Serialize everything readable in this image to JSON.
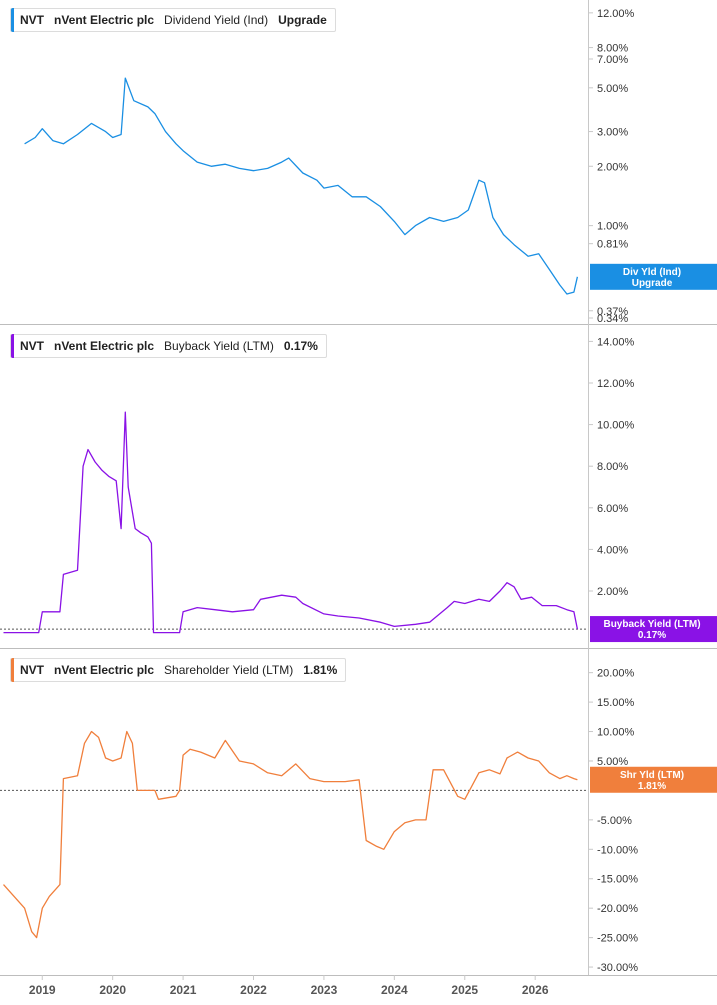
{
  "colors": {
    "dividend": "#1a8fe3",
    "buyback": "#8a12e6",
    "shareholder": "#f07f3c",
    "grid": "#e6e6e6",
    "axis": "#c8c8c8"
  },
  "chart_data": [
    {
      "type": "line",
      "ticker": "NVT",
      "company": "nVent Electric plc",
      "metric": "Dividend Yield (Ind)",
      "value_label": "Upgrade",
      "tag_lines": [
        "Div Yld (Ind)",
        "Upgrade"
      ],
      "yscale": "log",
      "ylim": [
        0.34,
        13
      ],
      "yticks": [
        "12.00%",
        "8.00%",
        "7.00%",
        "5.00%",
        "3.00%",
        "2.00%",
        "1.00%",
        "0.81%",
        "0.37%",
        "0.34%"
      ],
      "yticks_values": [
        12,
        8,
        7,
        5,
        3,
        2,
        1,
        0.81,
        0.37,
        0.34
      ],
      "reference_line": null,
      "x": [
        2018.75,
        2018.9,
        2019.0,
        2019.15,
        2019.3,
        2019.5,
        2019.7,
        2019.9,
        2020.0,
        2020.12,
        2020.18,
        2020.3,
        2020.5,
        2020.6,
        2020.75,
        2020.9,
        2021.0,
        2021.2,
        2021.4,
        2021.6,
        2021.8,
        2022.0,
        2022.2,
        2022.4,
        2022.5,
        2022.7,
        2022.9,
        2023.0,
        2023.2,
        2023.4,
        2023.6,
        2023.8,
        2024.0,
        2024.15,
        2024.3,
        2024.5,
        2024.7,
        2024.9,
        2025.05,
        2025.2,
        2025.28,
        2025.4,
        2025.55,
        2025.7,
        2025.9,
        2026.05,
        2026.2,
        2026.35,
        2026.45,
        2026.55,
        2026.6
      ],
      "y": [
        2.6,
        2.8,
        3.1,
        2.7,
        2.6,
        2.9,
        3.3,
        3.0,
        2.8,
        2.9,
        5.6,
        4.3,
        4.0,
        3.7,
        3.0,
        2.6,
        2.4,
        2.1,
        2.0,
        2.05,
        1.95,
        1.9,
        1.95,
        2.1,
        2.2,
        1.85,
        1.7,
        1.55,
        1.6,
        1.4,
        1.4,
        1.25,
        1.05,
        0.9,
        1.0,
        1.1,
        1.05,
        1.1,
        1.2,
        1.7,
        1.65,
        1.1,
        0.9,
        0.8,
        0.7,
        0.72,
        0.6,
        0.5,
        0.45,
        0.46,
        0.55
      ]
    },
    {
      "type": "line",
      "ticker": "NVT",
      "company": "nVent Electric plc",
      "metric": "Buyback Yield (LTM)",
      "value_label": "0.17%",
      "tag_lines": [
        "Buyback Yield (LTM)",
        "0.17%"
      ],
      "yscale": "linear",
      "ylim": [
        -0.5,
        14.5
      ],
      "yticks": [
        "14.00%",
        "12.00%",
        "10.00%",
        "8.00%",
        "6.00%",
        "4.00%",
        "2.00%"
      ],
      "yticks_values": [
        14,
        12,
        10,
        8,
        6,
        4,
        2
      ],
      "reference_line": 0.17,
      "x": [
        2018.45,
        2018.7,
        2018.8,
        2018.95,
        2019.0,
        2019.25,
        2019.3,
        2019.5,
        2019.58,
        2019.65,
        2019.75,
        2019.85,
        2019.95,
        2020.05,
        2020.12,
        2020.18,
        2020.22,
        2020.28,
        2020.32,
        2020.4,
        2020.5,
        2020.55,
        2020.58,
        2020.7,
        2020.85,
        2020.95,
        2021.0,
        2021.2,
        2021.45,
        2021.7,
        2022.0,
        2022.1,
        2022.4,
        2022.6,
        2022.7,
        2023.0,
        2023.2,
        2023.5,
        2023.8,
        2024.0,
        2024.3,
        2024.5,
        2024.75,
        2024.85,
        2025.0,
        2025.2,
        2025.35,
        2025.5,
        2025.6,
        2025.7,
        2025.8,
        2025.95,
        2026.1,
        2026.3,
        2026.45,
        2026.55,
        2026.6
      ],
      "y": [
        0.0,
        0.0,
        0.0,
        0.0,
        1.0,
        1.0,
        2.8,
        3.0,
        8.0,
        8.8,
        8.2,
        7.8,
        7.5,
        7.3,
        5.0,
        10.6,
        7.0,
        5.8,
        5.0,
        4.8,
        4.6,
        4.3,
        0.0,
        0.0,
        0.0,
        0.0,
        1.0,
        1.2,
        1.1,
        1.0,
        1.1,
        1.6,
        1.8,
        1.7,
        1.4,
        0.9,
        0.8,
        0.7,
        0.5,
        0.3,
        0.4,
        0.5,
        1.2,
        1.5,
        1.4,
        1.6,
        1.5,
        2.0,
        2.4,
        2.2,
        1.6,
        1.7,
        1.3,
        1.3,
        1.1,
        1.0,
        0.17
      ]
    },
    {
      "type": "line",
      "ticker": "NVT",
      "company": "nVent Electric plc",
      "metric": "Shareholder Yield (LTM)",
      "value_label": "1.81%",
      "tag_lines": [
        "Shr Yld (LTM)",
        "1.81%"
      ],
      "yscale": "linear",
      "ylim": [
        -30.5,
        23
      ],
      "yticks": [
        "20.00%",
        "15.00%",
        "10.00%",
        "5.00%",
        "-5.00%",
        "-10.00%",
        "-15.00%",
        "-20.00%",
        "-25.00%",
        "-30.00%"
      ],
      "yticks_values": [
        20,
        15,
        10,
        5,
        -5,
        -10,
        -15,
        -20,
        -25,
        -30
      ],
      "reference_line": 0,
      "x": [
        2018.45,
        2018.6,
        2018.75,
        2018.85,
        2018.92,
        2019.0,
        2019.1,
        2019.25,
        2019.3,
        2019.5,
        2019.6,
        2019.7,
        2019.8,
        2019.9,
        2020.0,
        2020.12,
        2020.2,
        2020.28,
        2020.35,
        2020.6,
        2020.65,
        2020.9,
        2020.95,
        2021.0,
        2021.1,
        2021.25,
        2021.45,
        2021.6,
        2021.8,
        2022.0,
        2022.2,
        2022.4,
        2022.6,
        2022.8,
        2023.0,
        2023.3,
        2023.5,
        2023.6,
        2023.75,
        2023.85,
        2024.0,
        2024.15,
        2024.3,
        2024.45,
        2024.55,
        2024.7,
        2024.9,
        2025.0,
        2025.2,
        2025.35,
        2025.5,
        2025.6,
        2025.75,
        2025.9,
        2026.05,
        2026.2,
        2026.35,
        2026.45,
        2026.55,
        2026.6
      ],
      "y": [
        -16.0,
        -18.0,
        -20.0,
        -24.0,
        -25.0,
        -20.0,
        -18.0,
        -16.0,
        2.0,
        2.5,
        8.0,
        10.0,
        9.0,
        5.5,
        5.0,
        5.5,
        10.0,
        8.0,
        0.0,
        0.0,
        -1.5,
        -1.0,
        0.0,
        6.0,
        7.0,
        6.5,
        5.5,
        8.5,
        5.0,
        4.5,
        3.0,
        2.5,
        4.5,
        2.0,
        1.5,
        1.5,
        1.8,
        -8.5,
        -9.5,
        -10.0,
        -7.0,
        -5.5,
        -5.0,
        -5.0,
        3.5,
        3.5,
        -1.0,
        -1.5,
        3.0,
        3.5,
        2.8,
        5.5,
        6.5,
        5.5,
        5.0,
        3.0,
        2.0,
        2.5,
        2.0,
        1.81
      ]
    }
  ],
  "x_axis": {
    "ticks": [
      "2019",
      "2020",
      "2021",
      "2022",
      "2023",
      "2024",
      "2025",
      "2026"
    ],
    "ticks_values": [
      2019,
      2020,
      2021,
      2022,
      2023,
      2024,
      2025,
      2026
    ],
    "xlim": [
      2018.4,
      2026.75
    ]
  }
}
